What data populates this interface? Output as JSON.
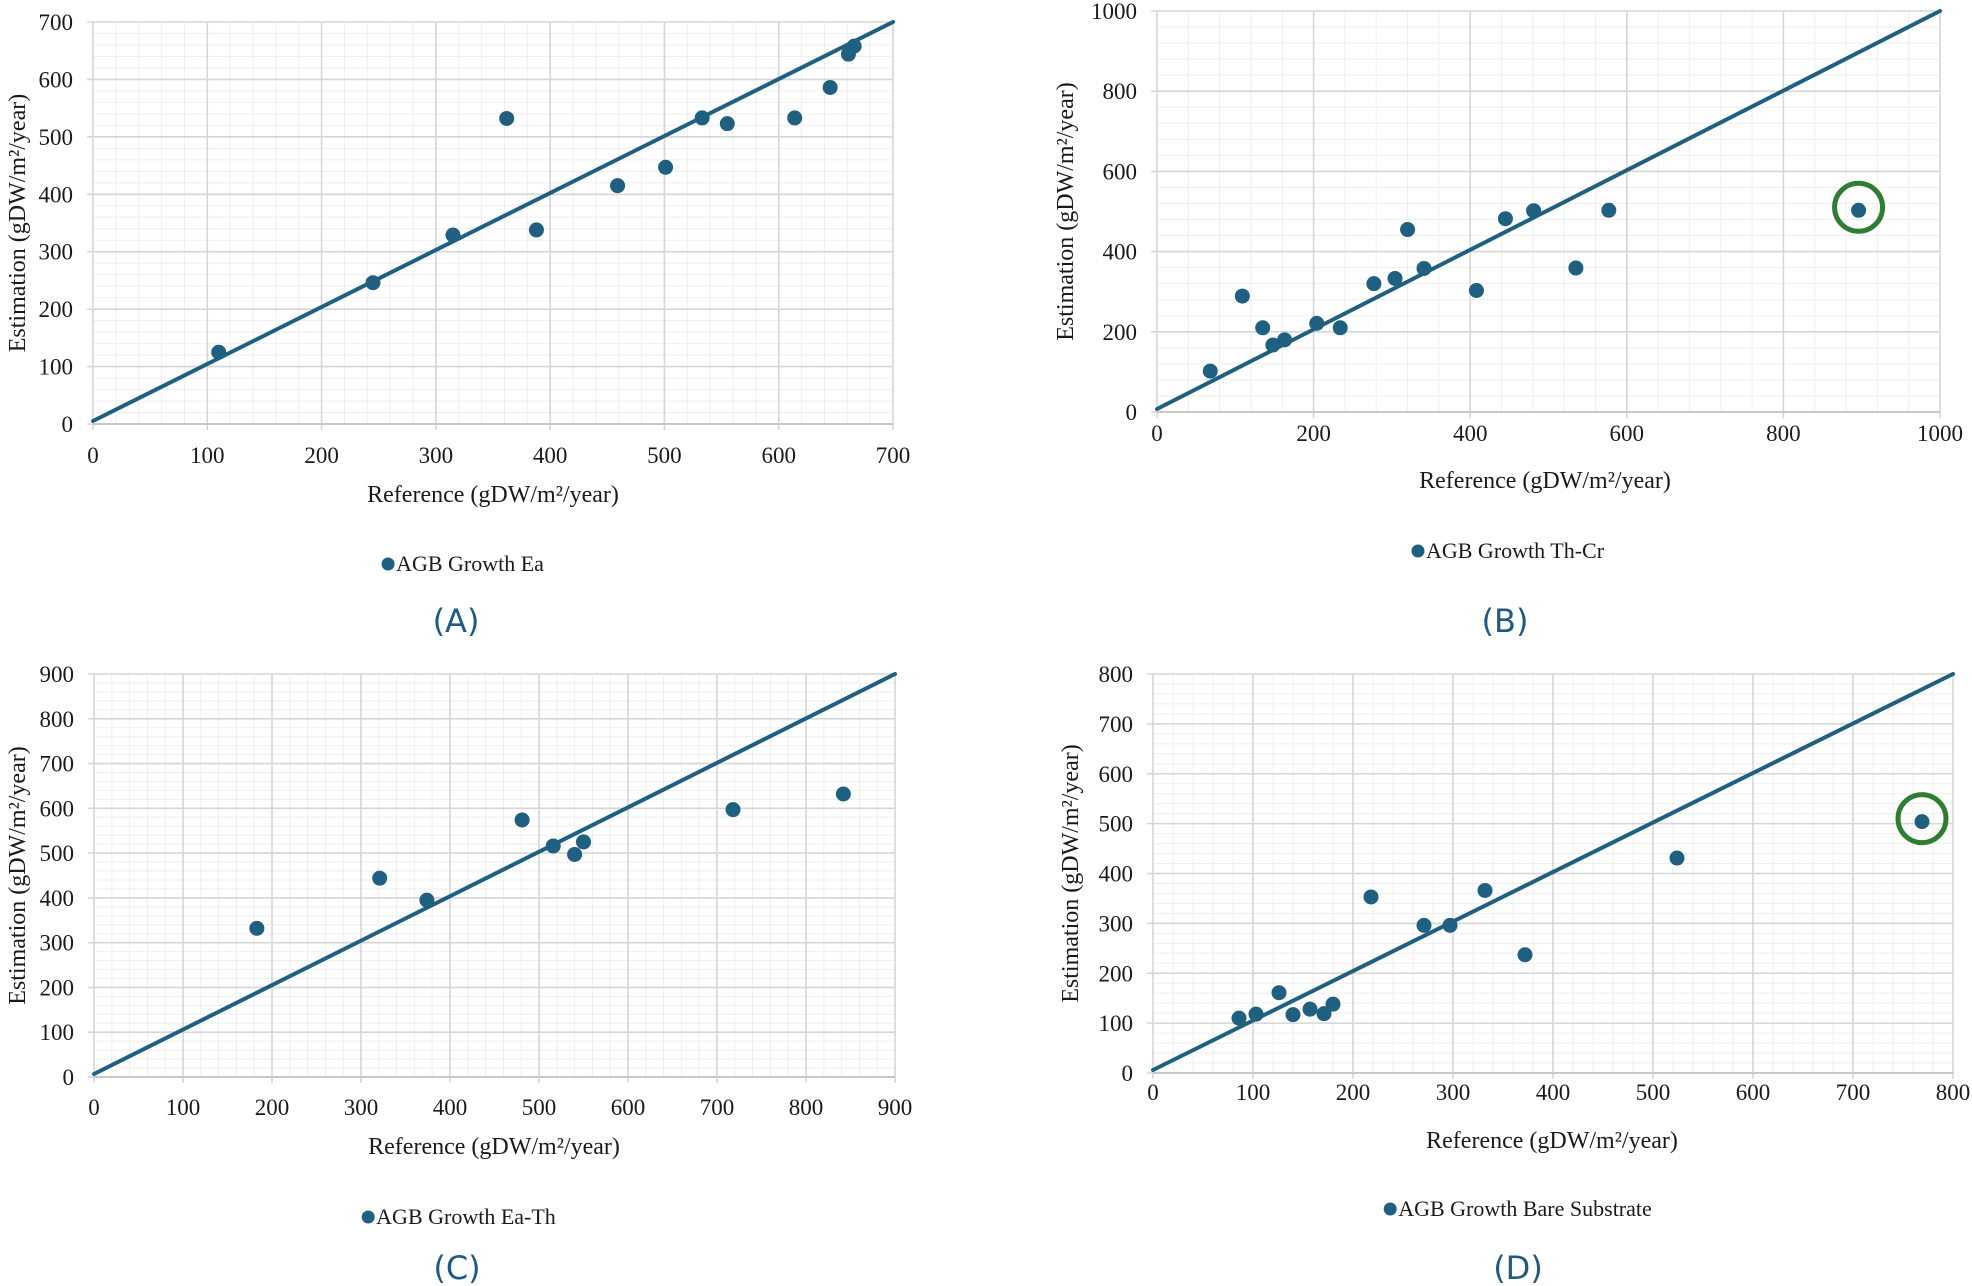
{
  "figure": {
    "panels": [
      "(A)",
      "(B)",
      "(C)",
      "(D)"
    ]
  },
  "colors": {
    "series": "#1f5f80",
    "highlight": "#2e7d32",
    "panel_label": "#1f5a80"
  },
  "chart_data": [
    {
      "type": "scatter",
      "panel_label": "(A)",
      "legend": "AGB Growth Ea",
      "legend_position": "bottom",
      "xlabel": "Reference (gDW/m²/year)",
      "ylabel": "Estimation (gDW/m²/year)",
      "xlim": [
        0,
        700
      ],
      "ylim": [
        0,
        700
      ],
      "xticks": [
        0,
        100,
        200,
        300,
        400,
        500,
        600,
        700
      ],
      "yticks": [
        0,
        100,
        200,
        300,
        400,
        500,
        600,
        700
      ],
      "minor_step": 20,
      "grid": true,
      "reference_line": {
        "type": "1:1",
        "from": [
          0,
          0
        ],
        "to": [
          700,
          700
        ]
      },
      "points": [
        {
          "x": 110,
          "y": 125
        },
        {
          "x": 245,
          "y": 246
        },
        {
          "x": 315,
          "y": 329
        },
        {
          "x": 362,
          "y": 532
        },
        {
          "x": 388,
          "y": 338
        },
        {
          "x": 459,
          "y": 415
        },
        {
          "x": 501,
          "y": 447
        },
        {
          "x": 533,
          "y": 533
        },
        {
          "x": 555,
          "y": 523
        },
        {
          "x": 614,
          "y": 533
        },
        {
          "x": 645,
          "y": 586
        },
        {
          "x": 661,
          "y": 644
        },
        {
          "x": 666,
          "y": 658
        }
      ],
      "highlighted": []
    },
    {
      "type": "scatter",
      "panel_label": "(B)",
      "legend": "AGB Growth Th-Cr",
      "legend_position": "bottom",
      "xlabel": "Reference (gDW/m²/year)",
      "ylabel": "Estimation (gDW/m²/year)",
      "xlim": [
        0,
        1000
      ],
      "ylim": [
        0,
        1000
      ],
      "xticks": [
        0,
        200,
        400,
        600,
        800,
        1000
      ],
      "yticks": [
        0,
        200,
        400,
        600,
        800,
        1000
      ],
      "minor_step": 40,
      "grid": true,
      "reference_line": {
        "type": "1:1",
        "from": [
          0,
          0
        ],
        "to": [
          1000,
          1000
        ]
      },
      "points": [
        {
          "x": 68,
          "y": 102
        },
        {
          "x": 109,
          "y": 289
        },
        {
          "x": 135,
          "y": 210
        },
        {
          "x": 148,
          "y": 167
        },
        {
          "x": 163,
          "y": 180
        },
        {
          "x": 204,
          "y": 221
        },
        {
          "x": 234,
          "y": 210
        },
        {
          "x": 277,
          "y": 320
        },
        {
          "x": 304,
          "y": 333
        },
        {
          "x": 320,
          "y": 455
        },
        {
          "x": 341,
          "y": 358
        },
        {
          "x": 408,
          "y": 303
        },
        {
          "x": 445,
          "y": 482
        },
        {
          "x": 481,
          "y": 502
        },
        {
          "x": 535,
          "y": 359
        },
        {
          "x": 577,
          "y": 503
        },
        {
          "x": 896,
          "y": 503
        }
      ],
      "highlighted": [
        16
      ]
    },
    {
      "type": "scatter",
      "panel_label": "(C)",
      "legend": "AGB Growth Ea-Th",
      "legend_position": "bottom",
      "xlabel": "Reference (gDW/m²/year)",
      "ylabel": "Estimation (gDW/m²/year)",
      "xlim": [
        0,
        900
      ],
      "ylim": [
        0,
        900
      ],
      "xticks": [
        0,
        100,
        200,
        300,
        400,
        500,
        600,
        700,
        800,
        900
      ],
      "yticks": [
        0,
        100,
        200,
        300,
        400,
        500,
        600,
        700,
        800,
        900
      ],
      "minor_step": 20,
      "grid": true,
      "reference_line": {
        "type": "1:1",
        "from": [
          0,
          0
        ],
        "to": [
          900,
          900
        ]
      },
      "points": [
        {
          "x": 183,
          "y": 332
        },
        {
          "x": 321,
          "y": 444
        },
        {
          "x": 374,
          "y": 395
        },
        {
          "x": 481,
          "y": 574
        },
        {
          "x": 516,
          "y": 516
        },
        {
          "x": 540,
          "y": 497
        },
        {
          "x": 550,
          "y": 525
        },
        {
          "x": 718,
          "y": 597
        },
        {
          "x": 842,
          "y": 632
        }
      ],
      "highlighted": []
    },
    {
      "type": "scatter",
      "panel_label": "(D)",
      "legend": "AGB Growth Bare Substrate",
      "legend_position": "bottom",
      "xlabel": "Reference (gDW/m²/year)",
      "ylabel": "Estimation (gDW/m²/year)",
      "xlim": [
        0,
        800
      ],
      "ylim": [
        0,
        800
      ],
      "xticks": [
        0,
        100,
        200,
        300,
        400,
        500,
        600,
        700,
        800
      ],
      "yticks": [
        0,
        100,
        200,
        300,
        400,
        500,
        600,
        700,
        800
      ],
      "minor_step": 20,
      "grid": true,
      "reference_line": {
        "type": "1:1",
        "from": [
          0,
          0
        ],
        "to": [
          800,
          800
        ]
      },
      "points": [
        {
          "x": 86,
          "y": 110
        },
        {
          "x": 103,
          "y": 118
        },
        {
          "x": 126,
          "y": 161
        },
        {
          "x": 140,
          "y": 117
        },
        {
          "x": 157,
          "y": 128
        },
        {
          "x": 171,
          "y": 119
        },
        {
          "x": 180,
          "y": 138
        },
        {
          "x": 218,
          "y": 353
        },
        {
          "x": 271,
          "y": 296
        },
        {
          "x": 297,
          "y": 296
        },
        {
          "x": 332,
          "y": 366
        },
        {
          "x": 372,
          "y": 237
        },
        {
          "x": 524,
          "y": 431
        },
        {
          "x": 769,
          "y": 504
        }
      ],
      "highlighted": [
        13
      ]
    }
  ]
}
